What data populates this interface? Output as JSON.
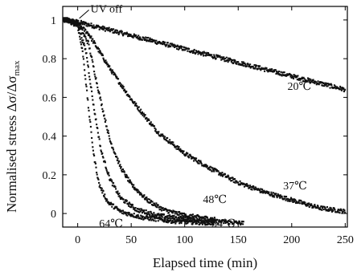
{
  "chart_data": {
    "type": "scatter",
    "xlabel": "Elapsed time (min)",
    "ylabel": "Normalised stress  Δσ/Δσ",
    "ylabel_sub": "max",
    "xlim": [
      -14,
      252
    ],
    "ylim": [
      -0.07,
      1.07
    ],
    "x_ticks": [
      0,
      50,
      100,
      150,
      200,
      250
    ],
    "x_tick_labels": [
      "0",
      "50",
      "100",
      "150",
      "200",
      "250"
    ],
    "y_ticks": [
      0,
      0.2,
      0.4,
      0.6,
      0.8,
      1.0
    ],
    "y_tick_labels": [
      "0",
      "0.2",
      "0.4",
      "0.6",
      "0.8",
      "1"
    ],
    "grid": false,
    "annotation_uv": {
      "text": "UV off",
      "x": 0,
      "y": 1.0,
      "text_x": 12,
      "text_y": 1.06
    },
    "series": [
      {
        "name": "20℃",
        "label_x": 196,
        "label_y": 0.66,
        "x_start": -13,
        "x_end": 250,
        "points": [
          [
            -10,
            1.0
          ],
          [
            0,
            0.99
          ],
          [
            50,
            0.92
          ],
          [
            100,
            0.85
          ],
          [
            150,
            0.78
          ],
          [
            200,
            0.71
          ],
          [
            250,
            0.64
          ]
        ]
      },
      {
        "name": "37℃",
        "label_x": 192,
        "label_y": 0.145,
        "x_start": -13,
        "x_end": 250,
        "points": [
          [
            -10,
            1.0
          ],
          [
            0,
            0.98
          ],
          [
            10,
            0.93
          ],
          [
            20,
            0.84
          ],
          [
            30,
            0.75
          ],
          [
            50,
            0.59
          ],
          [
            75,
            0.42
          ],
          [
            100,
            0.31
          ],
          [
            125,
            0.23
          ],
          [
            150,
            0.16
          ],
          [
            175,
            0.11
          ],
          [
            200,
            0.07
          ],
          [
            225,
            0.03
          ],
          [
            250,
            0.01
          ]
        ]
      },
      {
        "name": "48℃",
        "label_x": 117,
        "label_y": 0.075,
        "x_start": -13,
        "x_end": 128,
        "points": [
          [
            -10,
            1.0
          ],
          [
            0,
            0.98
          ],
          [
            10,
            0.88
          ],
          [
            20,
            0.62
          ],
          [
            30,
            0.38
          ],
          [
            40,
            0.24
          ],
          [
            50,
            0.15
          ],
          [
            65,
            0.07
          ],
          [
            80,
            0.02
          ],
          [
            100,
            -0.01
          ],
          [
            128,
            -0.03
          ]
        ]
      },
      {
        "name": "54℃",
        "label_x": 125,
        "label_y": -0.05,
        "x_start": -13,
        "x_end": 155,
        "points": [
          [
            -10,
            1.0
          ],
          [
            0,
            0.98
          ],
          [
            8,
            0.83
          ],
          [
            15,
            0.55
          ],
          [
            22,
            0.32
          ],
          [
            30,
            0.18
          ],
          [
            40,
            0.08
          ],
          [
            55,
            0.02
          ],
          [
            75,
            -0.01
          ],
          [
            100,
            -0.03
          ],
          [
            155,
            -0.05
          ]
        ]
      },
      {
        "name": "64℃",
        "label_x": 20,
        "label_y": -0.05,
        "x_start": -13,
        "x_end": 128,
        "points": [
          [
            -10,
            1.0
          ],
          [
            0,
            0.97
          ],
          [
            5,
            0.82
          ],
          [
            10,
            0.55
          ],
          [
            15,
            0.3
          ],
          [
            20,
            0.15
          ],
          [
            28,
            0.06
          ],
          [
            40,
            0.01
          ],
          [
            60,
            -0.02
          ],
          [
            90,
            -0.04
          ],
          [
            128,
            -0.05
          ]
        ]
      }
    ]
  }
}
